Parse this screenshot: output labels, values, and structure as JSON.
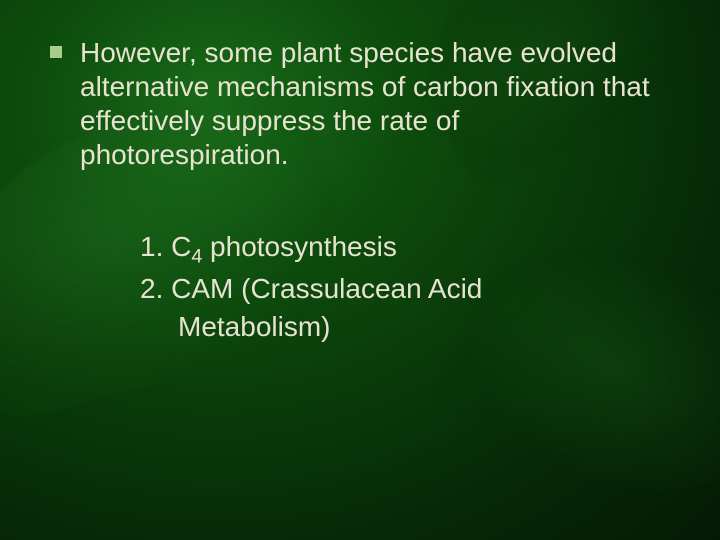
{
  "colors": {
    "text": "#e8e2d0",
    "bullet": "#a8cc8a"
  },
  "typography": {
    "body_fontsize_pt": 21,
    "font_family": "Arial"
  },
  "main_bullet": {
    "text": "However, some plant species have evolved alternative mechanisms of carbon fixation that effectively suppress the rate of photorespiration."
  },
  "sub_items": [
    {
      "number": "1.",
      "prefix": "C",
      "subscript": "4",
      "suffix": " photosynthesis"
    },
    {
      "number": "2.",
      "text_line1": "CAM (Crassulacean Acid",
      "text_line2": "Metabolism)"
    }
  ]
}
